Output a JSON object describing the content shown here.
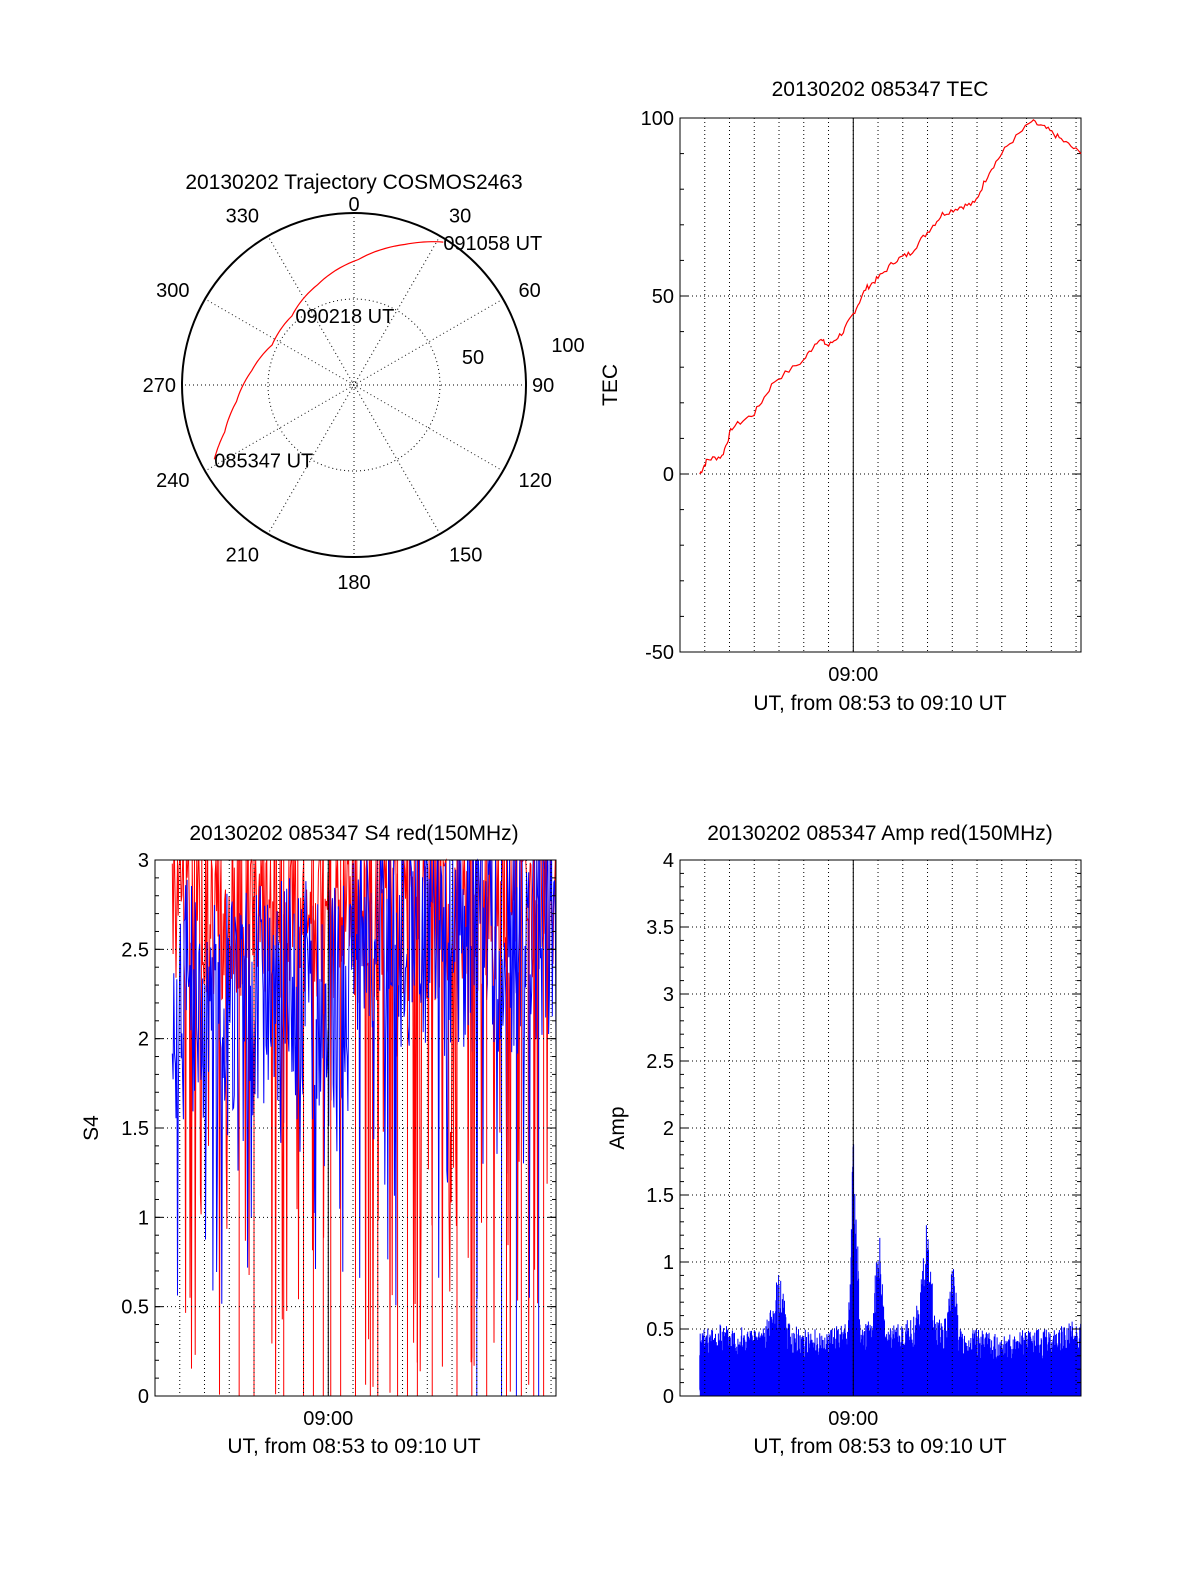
{
  "chart_data": [
    {
      "type": "polar",
      "title": "20130202 Trajectory COSMOS2463",
      "azimuth_labels": [
        "0",
        "30",
        "60",
        "90",
        "120",
        "150",
        "180",
        "210",
        "240",
        "270",
        "300",
        "330"
      ],
      "azimuths": [
        0,
        30,
        60,
        90,
        120,
        150,
        180,
        210,
        240,
        270,
        300,
        330
      ],
      "radial_labels": [
        "50",
        "100"
      ],
      "radial_values": [
        50,
        100
      ],
      "trajectory": {
        "color": "#ff0000",
        "points": [
          {
            "az": 242,
            "r": 92
          },
          {
            "az": 250,
            "r": 80
          },
          {
            "az": 262,
            "r": 69
          },
          {
            "az": 278,
            "r": 60
          },
          {
            "az": 296,
            "r": 53
          },
          {
            "az": 318,
            "r": 54
          },
          {
            "az": 340,
            "r": 62
          },
          {
            "az": 2,
            "r": 73
          },
          {
            "az": 20,
            "r": 87
          },
          {
            "az": 32,
            "r": 98
          }
        ]
      },
      "annotations": [
        {
          "text": "085347 UT",
          "az": 242,
          "r": 92
        },
        {
          "text": "090218 UT",
          "az": 320,
          "r": 53
        },
        {
          "text": "091058 UT",
          "az": 32,
          "r": 98
        }
      ]
    },
    {
      "type": "line",
      "title": "20130202 085347 TEC",
      "xlabel": "UT, from 08:53 to 09:10 UT",
      "ylabel": "TEC",
      "x_tick_labels": [
        "09:00"
      ],
      "y_tick_labels": [
        "-50",
        "0",
        "50",
        "100"
      ],
      "xlim": [
        -7.0,
        9.2
      ],
      "ylim": [
        -50,
        100
      ],
      "x_tick_values": [
        0
      ],
      "y_tick_values": [
        -50,
        0,
        50,
        100
      ],
      "series": [
        {
          "color": "#ff0000",
          "x": [
            -6.2,
            -5.9,
            -5.3,
            -4.9,
            -4.0,
            -3.2,
            -2.0,
            -1.4,
            -1.0,
            -0.4,
            0.0,
            0.5,
            1.0,
            1.7,
            2.3,
            3.0,
            3.6,
            4.3,
            4.9,
            5.5,
            6.2,
            7.2,
            7.8,
            8.4,
            9.2
          ],
          "y": [
            0,
            4,
            5,
            13,
            17,
            26,
            32,
            38,
            36,
            40,
            45,
            52,
            55,
            60,
            62,
            68,
            73,
            75,
            76,
            85,
            92,
            99,
            97,
            94,
            90
          ]
        }
      ]
    },
    {
      "type": "line",
      "title": "20130202 085347 S4 red(150MHz)",
      "xlabel": "UT, from 08:53 to 09:10 UT",
      "ylabel": "S4",
      "x_tick_labels": [
        "09:00"
      ],
      "y_tick_labels": [
        "0",
        "0.5",
        "1",
        "1.5",
        "2",
        "2.5",
        "3"
      ],
      "xlim": [
        -7.0,
        9.2
      ],
      "ylim": [
        0,
        3
      ],
      "x_tick_values": [
        0
      ],
      "y_tick_values": [
        0,
        0.5,
        1,
        1.5,
        2,
        2.5,
        3
      ],
      "series": [
        {
          "color": "#ff0000",
          "x": [
            -7.0,
            9.2
          ],
          "y": [
            3.0,
            3.0
          ]
        },
        {
          "color": "#0000ff",
          "x": [
            -7.0,
            9.2
          ],
          "y": [
            2.0,
            2.0
          ]
        }
      ]
    },
    {
      "type": "line",
      "title": "20130202 085347 Amp red(150MHz)",
      "xlabel": "UT, from 08:53 to 09:10 UT",
      "ylabel": "Amp",
      "x_tick_labels": [
        "09:00"
      ],
      "y_tick_labels": [
        "0",
        "0.5",
        "1",
        "1.5",
        "2",
        "2.5",
        "3",
        "3.5",
        "4"
      ],
      "xlim": [
        -7.0,
        9.2
      ],
      "ylim": [
        0,
        4
      ],
      "x_tick_values": [
        0
      ],
      "y_tick_values": [
        0,
        0.5,
        1,
        1.5,
        2,
        2.5,
        3,
        3.5,
        4
      ],
      "series": [
        {
          "color": "#0000ff",
          "x": [
            -6.2,
            -5.0,
            -4.0,
            -3.4,
            -3.0,
            -2.6,
            -2.0,
            -1.0,
            -0.2,
            0.0,
            0.3,
            0.8,
            1.0,
            1.3,
            2.5,
            3.0,
            3.3,
            3.8,
            4.0,
            4.3,
            5.0,
            6.0,
            7.0,
            8.0,
            9.2
          ],
          "y": [
            0.5,
            0.55,
            0.5,
            0.6,
            0.95,
            0.55,
            0.5,
            0.5,
            0.55,
            2.1,
            0.5,
            0.6,
            1.4,
            0.5,
            0.6,
            1.35,
            0.6,
            0.6,
            1.1,
            0.5,
            0.5,
            0.45,
            0.5,
            0.5,
            0.6
          ]
        }
      ]
    }
  ]
}
